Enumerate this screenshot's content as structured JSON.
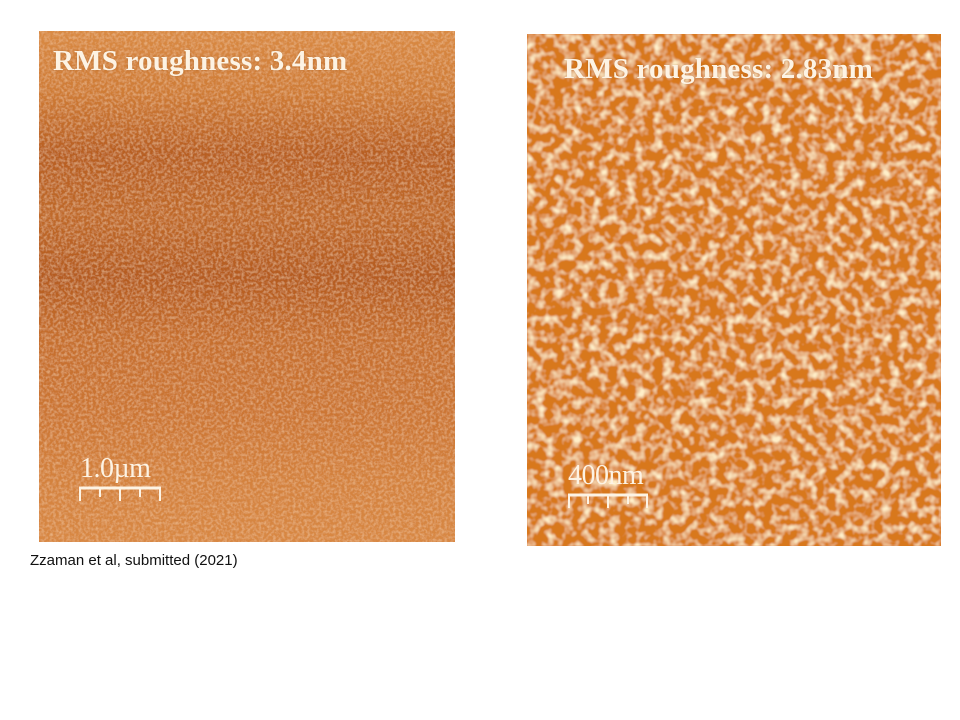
{
  "images": {
    "left": {
      "rms_label": "RMS roughness: 3.4nm",
      "scale_label": "1.0µm",
      "texture_color": "#c06a28",
      "highlight_color": "#e8a060"
    },
    "right": {
      "rms_label": "RMS roughness: 2.83nm",
      "scale_label": "400nm",
      "texture_color": "#d87a24",
      "highlight_color": "#ffd28a"
    }
  },
  "caption": "Zzaman et al, submitted (2021)"
}
